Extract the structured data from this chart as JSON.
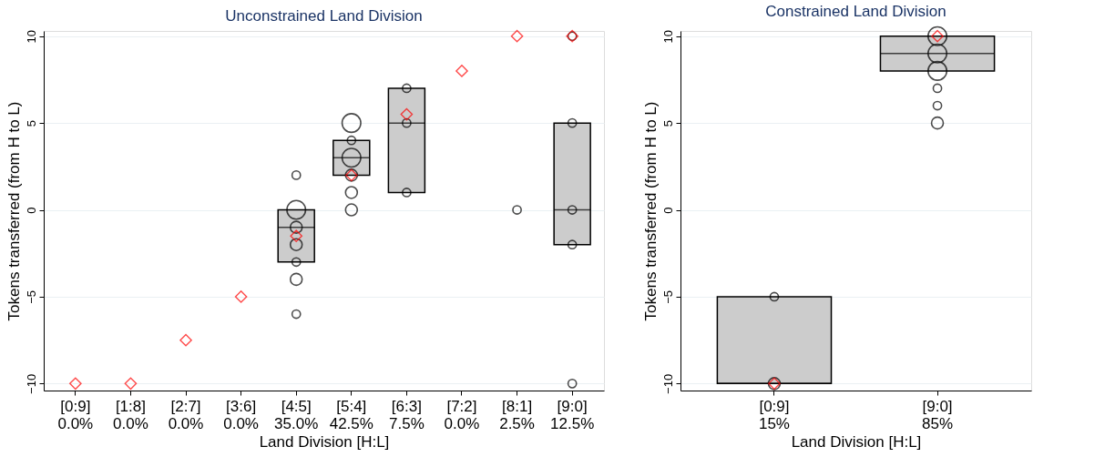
{
  "chart_data": [
    {
      "type": "box",
      "title": "Unconstrained Land Division",
      "xlabel": "Land Division [H:L]",
      "ylabel": "Tokens transferred (from H to L)",
      "categories": [
        "[0:9]\n0.0%",
        "[1:8]\n0.0%",
        "[2:7]\n0.0%",
        "[3:6]\n0.0%",
        "[4:5]\n35.0%",
        "[5:4]\n42.5%",
        "[6:3]\n7.5%",
        "[7:2]\n0.0%",
        "[8:1]\n2.5%",
        "[9:0]\n12.5%"
      ],
      "boxes": [
        null,
        null,
        null,
        null,
        {
          "low": -3,
          "q1": -3,
          "median": -1,
          "q3": 0,
          "high": 0
        },
        {
          "low": 2,
          "q1": 2,
          "median": 3,
          "q3": 4,
          "high": 4
        },
        {
          "low": 1,
          "q1": 1,
          "median": 5,
          "q3": 7,
          "high": 7
        },
        null,
        null,
        {
          "low": -2,
          "q1": -2,
          "median": 0,
          "q3": 5,
          "high": 5
        }
      ],
      "series": [
        {
          "type": "bubble",
          "color": "#000000",
          "x": [
            "[4:5]\n35.0%",
            "[4:5]\n35.0%",
            "[4:5]\n35.0%",
            "[4:5]\n35.0%",
            "[4:5]\n35.0%",
            "[4:5]\n35.0%",
            "[4:5]\n35.0%",
            "[5:4]\n42.5%",
            "[5:4]\n42.5%",
            "[5:4]\n42.5%",
            "[5:4]\n42.5%",
            "[5:4]\n42.5%",
            "[5:4]\n42.5%",
            "[6:3]\n7.5%",
            "[6:3]\n7.5%",
            "[6:3]\n7.5%",
            "[8:1]\n2.5%",
            "[9:0]\n12.5%",
            "[9:0]\n12.5%",
            "[9:0]\n12.5%",
            "[9:0]\n12.5%",
            "[9:0]\n12.5%"
          ],
          "values": [
            2,
            0,
            -1,
            -2,
            -3,
            -4,
            -6,
            5,
            4,
            3,
            2,
            1,
            0,
            7,
            5,
            1,
            0,
            10,
            5,
            0,
            -2,
            -10
          ],
          "sizes": [
            0.2,
            1,
            0.4,
            0.4,
            0.2,
            0.4,
            0.2,
            1,
            0.2,
            1,
            0.4,
            0.4,
            0.4,
            0.2,
            0.2,
            0.2,
            0.2,
            0.2,
            0.2,
            0.2,
            0.2,
            0.2
          ]
        },
        {
          "type": "scatter",
          "color": "#ff0000",
          "marker": "diamond",
          "x": [
            "[0:9]\n0.0%",
            "[1:8]\n0.0%",
            "[2:7]\n0.0%",
            "[3:6]\n0.0%",
            "[4:5]\n35.0%",
            "[5:4]\n42.5%",
            "[6:3]\n7.5%",
            "[7:2]\n0.0%",
            "[8:1]\n2.5%",
            "[9:0]\n12.5%"
          ],
          "values": [
            -10,
            -10,
            -7.5,
            -5,
            -1.5,
            2,
            5.5,
            8,
            10,
            10
          ]
        }
      ],
      "ylim": [
        -10.4,
        10.3
      ],
      "yticks": [
        -10,
        -5,
        0,
        5,
        10
      ],
      "grid": "y"
    },
    {
      "type": "box",
      "title": "Constrained Land Division",
      "xlabel": "Land Division [H:L]",
      "ylabel": "Tokens transferred (from H to L)",
      "categories": [
        "[0:9]\n15%",
        "[9:0]\n85%"
      ],
      "boxes": [
        {
          "low": -10,
          "q1": -10,
          "median": -10,
          "q3": -5,
          "high": -5
        },
        {
          "low": 8,
          "q1": 8,
          "median": 9,
          "q3": 10,
          "high": 10
        }
      ],
      "series": [
        {
          "type": "bubble",
          "color": "#000000",
          "x": [
            "[0:9]\n15%",
            "[0:9]\n15%",
            "[9:0]\n85%",
            "[9:0]\n85%",
            "[9:0]\n85%",
            "[9:0]\n85%",
            "[9:0]\n85%",
            "[9:0]\n85%"
          ],
          "values": [
            -5,
            -10,
            10,
            9,
            8,
            7,
            6,
            5
          ],
          "sizes": [
            0.2,
            0.4,
            1,
            1,
            1,
            0.2,
            0.2,
            0.4
          ]
        },
        {
          "type": "scatter",
          "color": "#ff0000",
          "marker": "diamond",
          "x": [
            "[0:9]\n15%",
            "[9:0]\n85%"
          ],
          "values": [
            -10,
            10
          ]
        }
      ],
      "ylim": [
        -10.4,
        10.3
      ],
      "yticks": [
        -10,
        -5,
        0,
        5,
        10
      ],
      "grid": "y"
    }
  ]
}
